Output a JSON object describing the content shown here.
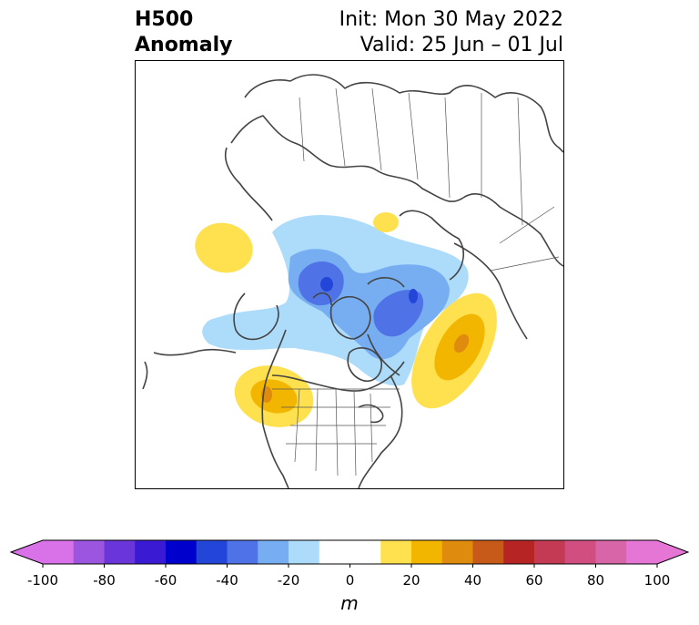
{
  "title": {
    "left_line1": "H500",
    "left_line2": "Anomaly",
    "right_line1": "Init: Mon 30 May 2022",
    "right_line2": "Valid: 25 Jun – 01 Jul"
  },
  "colorbar": {
    "units": "m",
    "ticks": [
      "-100",
      "-80",
      "-60",
      "-40",
      "-20",
      "0",
      "20",
      "40",
      "60",
      "80",
      "100"
    ],
    "levels": [
      -100,
      -90,
      -80,
      -70,
      -60,
      -50,
      -40,
      -30,
      -20,
      -10,
      10,
      20,
      30,
      40,
      50,
      60,
      70,
      80,
      90,
      100
    ],
    "colors": [
      "#d972e8",
      "#9c55df",
      "#6a35d9",
      "#3b1ad3",
      "#0000cc",
      "#2446d8",
      "#4f73e6",
      "#77aef2",
      "#acdcfa",
      "#ffffff",
      "#ffe04f",
      "#f2b600",
      "#df8c0e",
      "#c75a19",
      "#b62424",
      "#c43a55",
      "#d04f80",
      "#d865a7",
      "#e676d6"
    ],
    "under_color": "#d972e8",
    "over_color": "#e676d6"
  },
  "anomalies": [
    {
      "label": "negative anomaly over Arctic / northern Canada",
      "sign": "negative",
      "peak_value": -45
    },
    {
      "label": "negative anomaly over Hudson Bay region",
      "sign": "negative",
      "peak_value": -45
    },
    {
      "label": "negative anomaly over North Pacific / Aleutians",
      "sign": "negative",
      "peak_value": -15
    },
    {
      "label": "positive anomaly over North Atlantic",
      "sign": "positive",
      "peak_value": 45
    },
    {
      "label": "positive anomaly over US Pacific Northwest",
      "sign": "positive",
      "peak_value": 35
    },
    {
      "label": "positive anomaly over eastern Siberia",
      "sign": "positive",
      "peak_value": 15
    },
    {
      "label": "positive anomaly over Scandinavia / White Sea",
      "sign": "positive",
      "peak_value": 15
    }
  ]
}
